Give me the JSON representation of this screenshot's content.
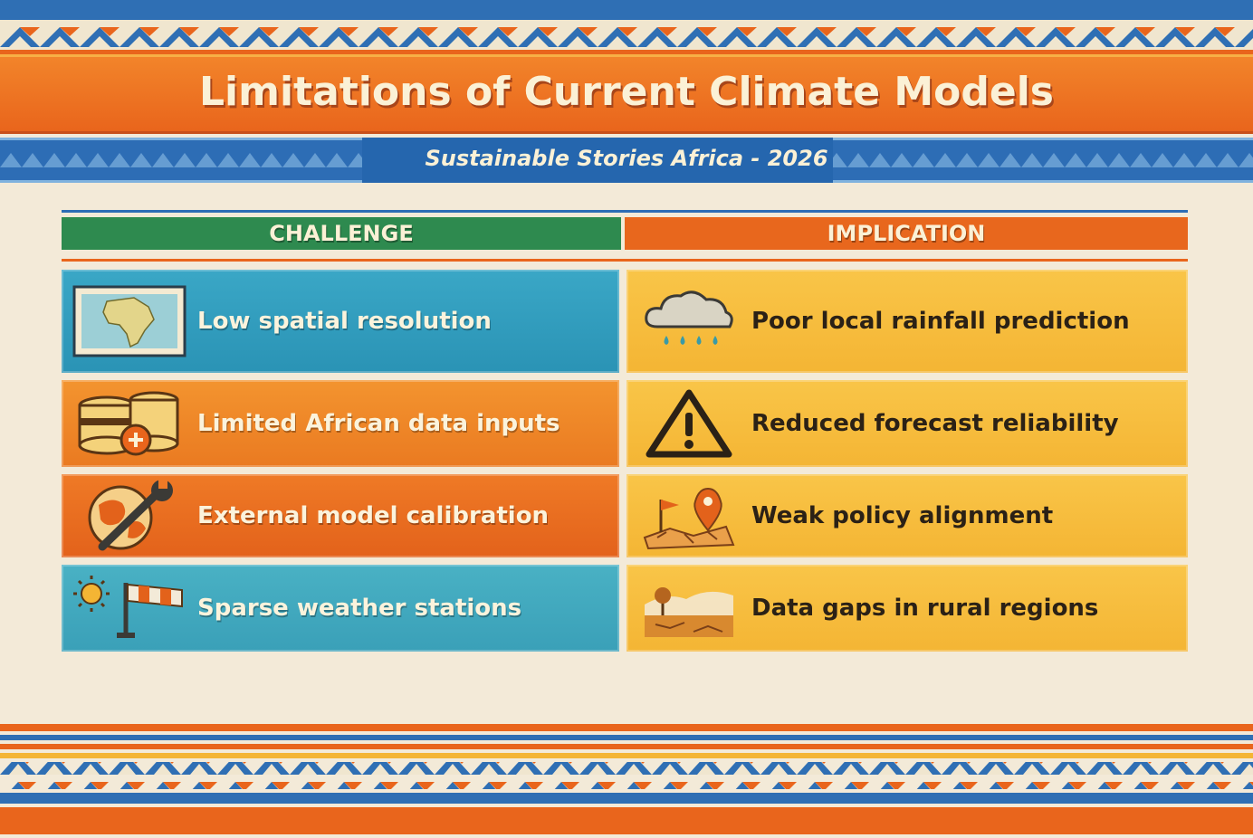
{
  "header": {
    "title": "Limitations of Current Climate Models",
    "subtitle": "Sustainable Stories Africa - 2026"
  },
  "table": {
    "columns": [
      "CHALLENGE",
      "IMPLICATION"
    ],
    "rows": [
      {
        "challenge": "Low spatial resolution",
        "challenge_icon": "africa-map-icon",
        "implication": "Poor local rainfall prediction",
        "implication_icon": "rain-cloud-icon"
      },
      {
        "challenge": "Limited African data inputs",
        "challenge_icon": "database-icon",
        "implication": "Reduced forecast reliability",
        "implication_icon": "warning-icon"
      },
      {
        "challenge": "External model calibration",
        "challenge_icon": "globe-wrench-icon",
        "implication": "Weak policy alignment",
        "implication_icon": "map-pin-flag-icon"
      },
      {
        "challenge": "Sparse weather stations",
        "challenge_icon": "sun-windsock-icon",
        "implication": "Data gaps in rural regions",
        "implication_icon": "dry-landscape-icon"
      }
    ]
  },
  "colors": {
    "orange": "#e9651c",
    "blue": "#2d6db5",
    "green": "#2e8a4f",
    "yellow": "#f4b534",
    "teal": "#2a93b5",
    "cream": "#f3ead8"
  }
}
